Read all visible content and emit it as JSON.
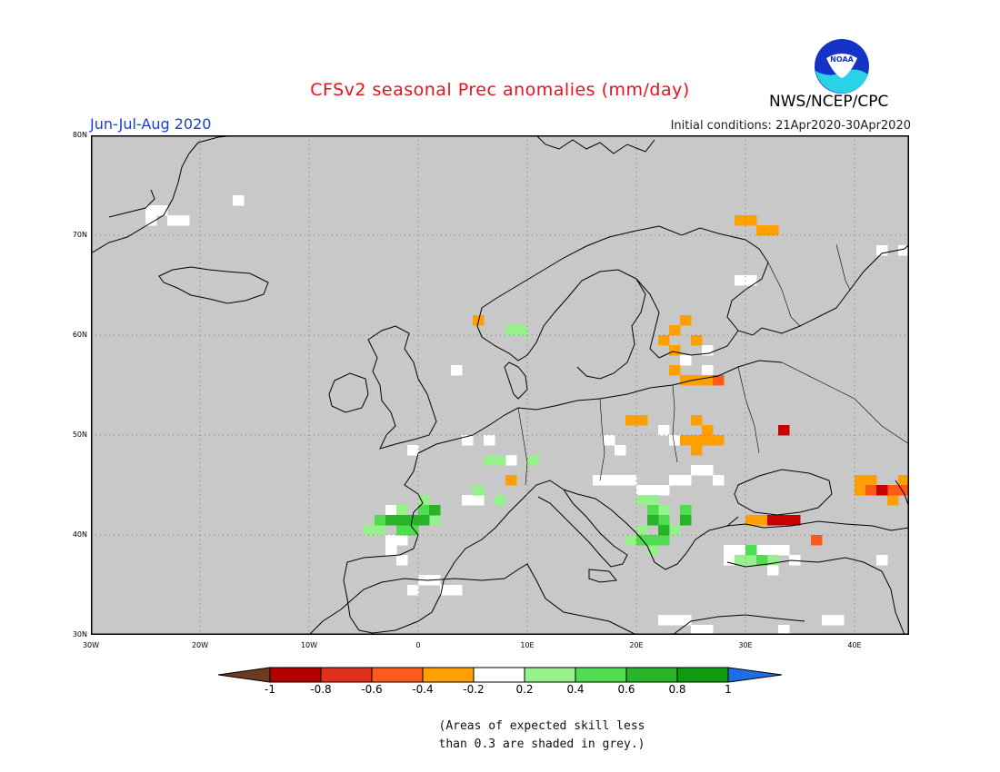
{
  "title": "CFSv2 seasonal Prec anomalies (mm/day)",
  "period": "Jun-Jul-Aug 2020",
  "initial_conditions": "Initial conditions: 21Apr2020-30Apr2020",
  "organization": "NWS/NCEP/CPC",
  "logo_text": "NOAA",
  "map": {
    "lon_range": [
      -30,
      45
    ],
    "lat_range": [
      30,
      80
    ],
    "lat_ticks": [
      "80N",
      "70N",
      "60N",
      "50N",
      "40N",
      "30N"
    ],
    "lon_ticks": [
      "30W",
      "20W",
      "10W",
      "0",
      "10E",
      "20E",
      "30E",
      "40E"
    ],
    "background_color": "#c8c8c8",
    "grid": "dotted"
  },
  "legend": {
    "labels": [
      "-1",
      "-0.8",
      "-0.6",
      "-0.4",
      "-0.2",
      "0.2",
      "0.4",
      "0.6",
      "0.8",
      "1"
    ],
    "colors": [
      "#6b3a20",
      "#b40000",
      "#e0301e",
      "#ff5a1a",
      "#ffa000",
      "#ffffff",
      "#96f08c",
      "#50dc50",
      "#28b428",
      "#0f9b0f",
      "#1e6ee6"
    ]
  },
  "note_line1": "(Areas of expected skill less",
  "note_line2": "than 0.3 are shaded in grey.)",
  "anomaly_cells": {
    "white": [
      [
        -25,
        72
      ],
      [
        -24,
        72
      ],
      [
        -25,
        71
      ],
      [
        -23,
        71
      ],
      [
        -22,
        71
      ],
      [
        -17,
        73
      ],
      [
        42,
        68
      ],
      [
        44,
        68
      ],
      [
        30,
        65
      ],
      [
        29,
        65
      ],
      [
        3,
        56
      ],
      [
        -1,
        48
      ],
      [
        4,
        49
      ],
      [
        6,
        49
      ],
      [
        7,
        47
      ],
      [
        8,
        47
      ],
      [
        22,
        50
      ],
      [
        23,
        49
      ],
      [
        17,
        49
      ],
      [
        18,
        48
      ],
      [
        16,
        45
      ],
      [
        17,
        45
      ],
      [
        18,
        45
      ],
      [
        19,
        45
      ],
      [
        20,
        44
      ],
      [
        21,
        44
      ],
      [
        22,
        44
      ],
      [
        23,
        45
      ],
      [
        24,
        45
      ],
      [
        25,
        46
      ],
      [
        26,
        46
      ],
      [
        27,
        45
      ],
      [
        -3,
        42
      ],
      [
        -3,
        41
      ],
      [
        -2,
        40
      ],
      [
        -3,
        39
      ],
      [
        -2,
        39
      ],
      [
        -3,
        38
      ],
      [
        -2,
        37
      ],
      [
        0,
        35
      ],
      [
        1,
        35
      ],
      [
        2,
        34
      ],
      [
        -1,
        34
      ],
      [
        3,
        34
      ],
      [
        28,
        38
      ],
      [
        29,
        38
      ],
      [
        30,
        38
      ],
      [
        31,
        38
      ],
      [
        32,
        38
      ],
      [
        33,
        38
      ],
      [
        34,
        37
      ],
      [
        28,
        37
      ],
      [
        32,
        36
      ],
      [
        22,
        31
      ],
      [
        23,
        31
      ],
      [
        24,
        31
      ],
      [
        25,
        30
      ],
      [
        26,
        30
      ],
      [
        33,
        30
      ],
      [
        37,
        31
      ],
      [
        38,
        31
      ],
      [
        42,
        37
      ],
      [
        45,
        41
      ],
      [
        45,
        53
      ],
      [
        45,
        55
      ],
      [
        26,
        58
      ],
      [
        26,
        56
      ],
      [
        27,
        55
      ],
      [
        25,
        55
      ],
      [
        24,
        57
      ],
      [
        -3,
        38
      ],
      [
        5,
        43
      ],
      [
        4,
        43
      ]
    ],
    "light_green": [
      [
        8,
        60
      ],
      [
        9,
        60
      ],
      [
        6,
        47
      ],
      [
        7,
        47
      ],
      [
        5,
        44
      ],
      [
        7,
        43
      ],
      [
        -4,
        40
      ],
      [
        -5,
        40
      ],
      [
        -2,
        42
      ],
      [
        0,
        43
      ],
      [
        1,
        41
      ],
      [
        20,
        43
      ],
      [
        21,
        43
      ],
      [
        22,
        42
      ],
      [
        20,
        40
      ],
      [
        19,
        39
      ],
      [
        23,
        40
      ],
      [
        21,
        38
      ],
      [
        29,
        37
      ],
      [
        30,
        37
      ],
      [
        32,
        37
      ],
      [
        10,
        47
      ],
      [
        -1,
        41
      ]
    ],
    "green": [
      [
        -4,
        41
      ],
      [
        -3,
        41
      ],
      [
        -2,
        41
      ],
      [
        -1,
        41
      ],
      [
        0,
        42
      ],
      [
        -2,
        40
      ],
      [
        -1,
        40
      ],
      [
        21,
        42
      ],
      [
        22,
        41
      ],
      [
        24,
        42
      ],
      [
        20,
        39
      ],
      [
        22,
        39
      ],
      [
        21,
        39
      ],
      [
        30,
        38
      ],
      [
        31,
        37
      ]
    ],
    "dark_green": [
      [
        -3,
        41
      ],
      [
        -2,
        41
      ],
      [
        -1,
        41
      ],
      [
        1,
        42
      ],
      [
        0,
        41
      ],
      [
        21,
        41
      ],
      [
        22,
        40
      ],
      [
        24,
        41
      ]
    ],
    "orange": [
      [
        5,
        61
      ],
      [
        24,
        61
      ],
      [
        23,
        60
      ],
      [
        22,
        59
      ],
      [
        23,
        58
      ],
      [
        23,
        56
      ],
      [
        24,
        55
      ],
      [
        25,
        55
      ],
      [
        26,
        55
      ],
      [
        19,
        51
      ],
      [
        20,
        51
      ],
      [
        25,
        51
      ],
      [
        26,
        50
      ],
      [
        25,
        49
      ],
      [
        26,
        49
      ],
      [
        27,
        49
      ],
      [
        24,
        49
      ],
      [
        25,
        48
      ],
      [
        8,
        45
      ],
      [
        29,
        71
      ],
      [
        30,
        71
      ],
      [
        31,
        70
      ],
      [
        32,
        70
      ],
      [
        25,
        59
      ],
      [
        40,
        45
      ],
      [
        41,
        45
      ],
      [
        44,
        45
      ],
      [
        40,
        44
      ],
      [
        43,
        43
      ],
      [
        31,
        41
      ],
      [
        30,
        41
      ]
    ],
    "red_orange": [
      [
        27,
        55
      ],
      [
        43,
        44
      ],
      [
        44,
        44
      ],
      [
        36,
        39
      ],
      [
        41,
        44
      ]
    ],
    "red": [
      [
        33,
        50
      ],
      [
        32,
        41
      ],
      [
        33,
        41
      ],
      [
        34,
        41
      ],
      [
        42,
        44
      ]
    ]
  }
}
